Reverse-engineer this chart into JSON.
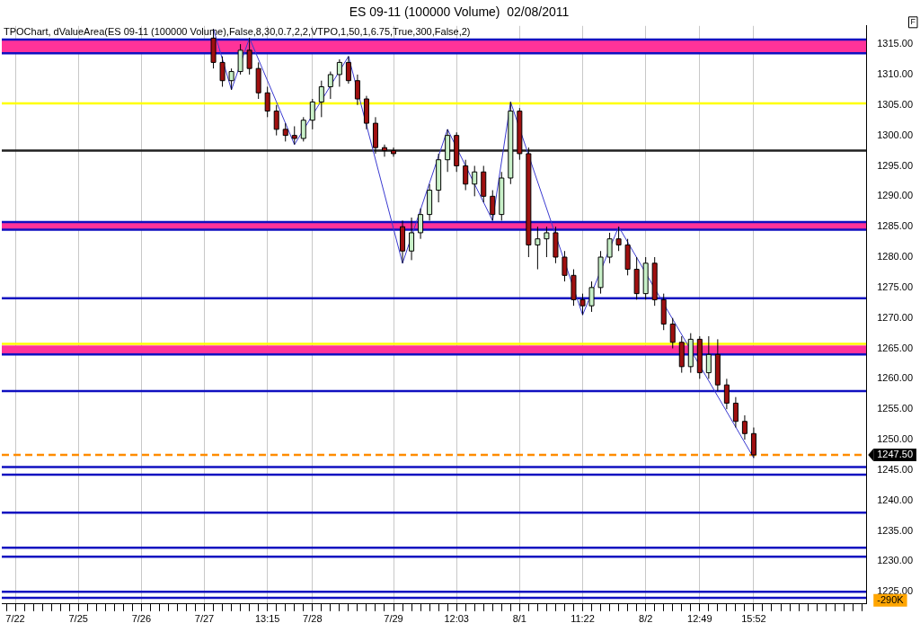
{
  "chart_data": {
    "type": "candlestick",
    "title": "ES 09-11 (100000 Volume)  02/08/2011",
    "subtitle": "TPOChart, dValueArea(ES 09-11 (100000 Volume),False,8,30,0.7,2,2,VTPO,1,50,1,6.75,True,300,False,2)",
    "categories": [
      null,
      "7/22",
      null,
      null,
      null,
      null,
      null,
      null,
      "7/25",
      null,
      null,
      null,
      null,
      null,
      null,
      "7/26",
      null,
      null,
      null,
      null,
      null,
      null,
      "7/27",
      null,
      null,
      null,
      null,
      null,
      null,
      "13:15",
      null,
      null,
      null,
      null,
      "7/28",
      null,
      null,
      null,
      null,
      null,
      null,
      null,
      null,
      "7/29",
      null,
      null,
      null,
      null,
      null,
      null,
      "12:03",
      null,
      null,
      null,
      null,
      null,
      null,
      "8/1",
      null,
      null,
      null,
      null,
      null,
      null,
      "11:22",
      null,
      null,
      null,
      null,
      null,
      null,
      "8/2",
      null,
      null,
      null,
      null,
      null,
      "12:49",
      null,
      null,
      null,
      null,
      null,
      "15:52",
      null,
      null,
      null,
      null,
      null,
      null,
      null,
      null,
      null,
      null,
      null,
      null
    ],
    "ohlc": [
      null,
      null,
      null,
      null,
      null,
      null,
      null,
      null,
      null,
      null,
      null,
      null,
      null,
      null,
      null,
      null,
      null,
      null,
      null,
      null,
      null,
      null,
      null,
      [
        1316,
        1317.5,
        1311,
        1312
      ],
      [
        1312,
        1313,
        1308,
        1309
      ],
      [
        1309,
        1311,
        1307.5,
        1310.5
      ],
      [
        1310.5,
        1315,
        1310,
        1314
      ],
      [
        1314,
        1316,
        1310,
        1311
      ],
      [
        1311,
        1312,
        1306,
        1307
      ],
      [
        1307,
        1308,
        1303,
        1304
      ],
      [
        1304,
        1305,
        1300,
        1301
      ],
      [
        1301,
        1302,
        1299,
        1300
      ],
      [
        1300,
        1301.5,
        1298.5,
        1299.5
      ],
      [
        1299.5,
        1303,
        1299,
        1302.5
      ],
      [
        1302.5,
        1306,
        1301,
        1305.5
      ],
      [
        1305.5,
        1309,
        1303,
        1308
      ],
      [
        1308,
        1310.5,
        1306,
        1310
      ],
      [
        1310,
        1312.5,
        1308,
        1312
      ],
      [
        1312,
        1313,
        1308.5,
        1309
      ],
      [
        1309,
        1310,
        1305,
        1306
      ],
      [
        1306,
        1306.5,
        1301,
        1302
      ],
      [
        1302,
        1303,
        1297,
        1298
      ],
      [
        1298,
        1298.5,
        1296.5,
        1297.5
      ],
      [
        1297.5,
        1298,
        1296.5,
        1297
      ],
      [
        1285,
        1286,
        1279,
        1281
      ],
      [
        1281,
        1286.5,
        1279.5,
        1284
      ],
      [
        1284,
        1288,
        1283,
        1287
      ],
      [
        1287,
        1292,
        1286,
        1291
      ],
      [
        1291,
        1297,
        1289,
        1296
      ],
      [
        1296,
        1301,
        1294,
        1300
      ],
      [
        1300,
        1300.5,
        1294,
        1295
      ],
      [
        1295,
        1296,
        1291,
        1292
      ],
      [
        1292,
        1295,
        1290,
        1294
      ],
      [
        1294,
        1295,
        1289,
        1290
      ],
      [
        1290,
        1291,
        1286,
        1287
      ],
      [
        1287,
        1294,
        1286,
        1293
      ],
      [
        1293,
        1305.5,
        1292,
        1304
      ],
      [
        1304,
        1304.5,
        1296,
        1297
      ],
      [
        1297,
        1298,
        1280,
        1282
      ],
      [
        1282,
        1285,
        1278,
        1283
      ],
      [
        1283,
        1285,
        1280,
        1284
      ],
      [
        1284,
        1285,
        1279,
        1280
      ],
      [
        1280,
        1281,
        1276,
        1277
      ],
      [
        1277,
        1278,
        1272,
        1273
      ],
      [
        1273,
        1274,
        1270.5,
        1272
      ],
      [
        1272,
        1276,
        1271,
        1275
      ],
      [
        1275,
        1281,
        1274,
        1280
      ],
      [
        1280,
        1284,
        1279,
        1283
      ],
      [
        1283,
        1285,
        1281,
        1282
      ],
      [
        1282,
        1283,
        1277,
        1278
      ],
      [
        1278,
        1280,
        1273,
        1274
      ],
      [
        1274,
        1280,
        1273,
        1279
      ],
      [
        1279,
        1280,
        1272,
        1273
      ],
      [
        1273,
        1274,
        1268,
        1269
      ],
      [
        1269,
        1270,
        1265,
        1266
      ],
      [
        1266,
        1267,
        1261,
        1262
      ],
      [
        1262,
        1267.5,
        1261,
        1266.5
      ],
      [
        1266.5,
        1267,
        1260,
        1261
      ],
      [
        1261,
        1267,
        1260,
        1264
      ],
      [
        1264,
        1266.5,
        1258,
        1259
      ],
      [
        1259,
        1260,
        1255,
        1256
      ],
      [
        1256,
        1257,
        1252,
        1253
      ],
      [
        1253,
        1254,
        1250,
        1251
      ],
      [
        1251,
        1252,
        1247,
        1247.5
      ],
      null,
      null,
      null,
      null,
      null,
      null,
      null,
      null,
      null,
      null,
      null,
      null
    ],
    "series": [
      {
        "type": "line",
        "color": "#3a3ad0",
        "values": [
          null,
          null,
          null,
          null,
          null,
          null,
          null,
          null,
          null,
          null,
          null,
          null,
          null,
          null,
          null,
          null,
          null,
          null,
          null,
          null,
          null,
          null,
          null,
          1317.5,
          null,
          1307.5,
          null,
          1316,
          null,
          null,
          null,
          null,
          1298.5,
          null,
          null,
          null,
          null,
          null,
          1313,
          null,
          null,
          null,
          null,
          null,
          1279,
          null,
          null,
          null,
          null,
          1301,
          null,
          null,
          null,
          null,
          1286,
          null,
          1305.5,
          null,
          null,
          null,
          null,
          null,
          null,
          null,
          1270.5,
          null,
          null,
          null,
          1285,
          null,
          null,
          null,
          null,
          null,
          null,
          null,
          null,
          null,
          null,
          null,
          null,
          null,
          null,
          1247,
          null,
          null,
          null,
          null,
          null,
          null,
          null,
          null,
          null,
          null,
          null,
          null
        ]
      }
    ],
    "ylim": [
      1223,
      1318
    ],
    "yticks": [
      {
        "value": 1225,
        "label": "1225.00"
      },
      {
        "value": 1230,
        "label": "1230.00"
      },
      {
        "value": 1235,
        "label": "1235.00"
      },
      {
        "value": 1240,
        "label": "1240.00"
      },
      {
        "value": 1245,
        "label": "1245.00"
      },
      {
        "value": 1250,
        "label": "1250.00"
      },
      {
        "value": 1255,
        "label": "1255.00"
      },
      {
        "value": 1260,
        "label": "1260.00"
      },
      {
        "value": 1265,
        "label": "1265.00"
      },
      {
        "value": 1270,
        "label": "1270.00"
      },
      {
        "value": 1275,
        "label": "1275.00"
      },
      {
        "value": 1280,
        "label": "1280.00"
      },
      {
        "value": 1285,
        "label": "1285.00"
      },
      {
        "value": 1290,
        "label": "1290.00"
      },
      {
        "value": 1295,
        "label": "1295.00"
      },
      {
        "value": 1300,
        "label": "1300.00"
      },
      {
        "value": 1305,
        "label": "1305.00"
      },
      {
        "value": 1310,
        "label": "1310.00"
      },
      {
        "value": 1315,
        "label": "1315.00"
      }
    ],
    "grid": "x",
    "bands": [
      {
        "axis": "y",
        "from": 1313.5,
        "to": 1315.75,
        "color": "#ff3399"
      },
      {
        "axis": "y",
        "from": 1284.5,
        "to": 1285.75,
        "color": "#ff3399"
      },
      {
        "axis": "y",
        "from": 1264,
        "to": 1265.5,
        "color": "#ff3399"
      }
    ],
    "ref_lines": [
      {
        "axis": "y",
        "value": 1315.75,
        "color": "#1010c0"
      },
      {
        "axis": "y",
        "value": 1313.5,
        "color": "#1010c0"
      },
      {
        "axis": "y",
        "value": 1305.25,
        "color": "#ffff00"
      },
      {
        "axis": "y",
        "value": 1297.5,
        "color": "#202020"
      },
      {
        "axis": "y",
        "value": 1285.75,
        "color": "#1010c0"
      },
      {
        "axis": "y",
        "value": 1284.5,
        "color": "#1010c0"
      },
      {
        "axis": "y",
        "value": 1273.25,
        "color": "#1010c0"
      },
      {
        "axis": "y",
        "value": 1265.75,
        "color": "#ffff00"
      },
      {
        "axis": "y",
        "value": 1264,
        "color": "#1010c0"
      },
      {
        "axis": "y",
        "value": 1258,
        "color": "#1010c0"
      },
      {
        "axis": "y",
        "value": 1247.5,
        "label": "1247.50",
        "color": "#ff8c00",
        "line_style": "dashed"
      },
      {
        "axis": "y",
        "value": 1245.5,
        "color": "#1010c0"
      },
      {
        "axis": "y",
        "value": 1244.25,
        "color": "#1010c0"
      },
      {
        "axis": "y",
        "value": 1238,
        "color": "#1010c0"
      },
      {
        "axis": "y",
        "value": 1232.25,
        "color": "#1010c0"
      },
      {
        "axis": "y",
        "value": 1230.75,
        "color": "#1010c0"
      },
      {
        "axis": "y",
        "value": 1225,
        "color": "#1010c0"
      },
      {
        "axis": "y",
        "value": 1224,
        "color": "#1010c0"
      }
    ],
    "annotations": [
      "-290K",
      "F"
    ]
  }
}
